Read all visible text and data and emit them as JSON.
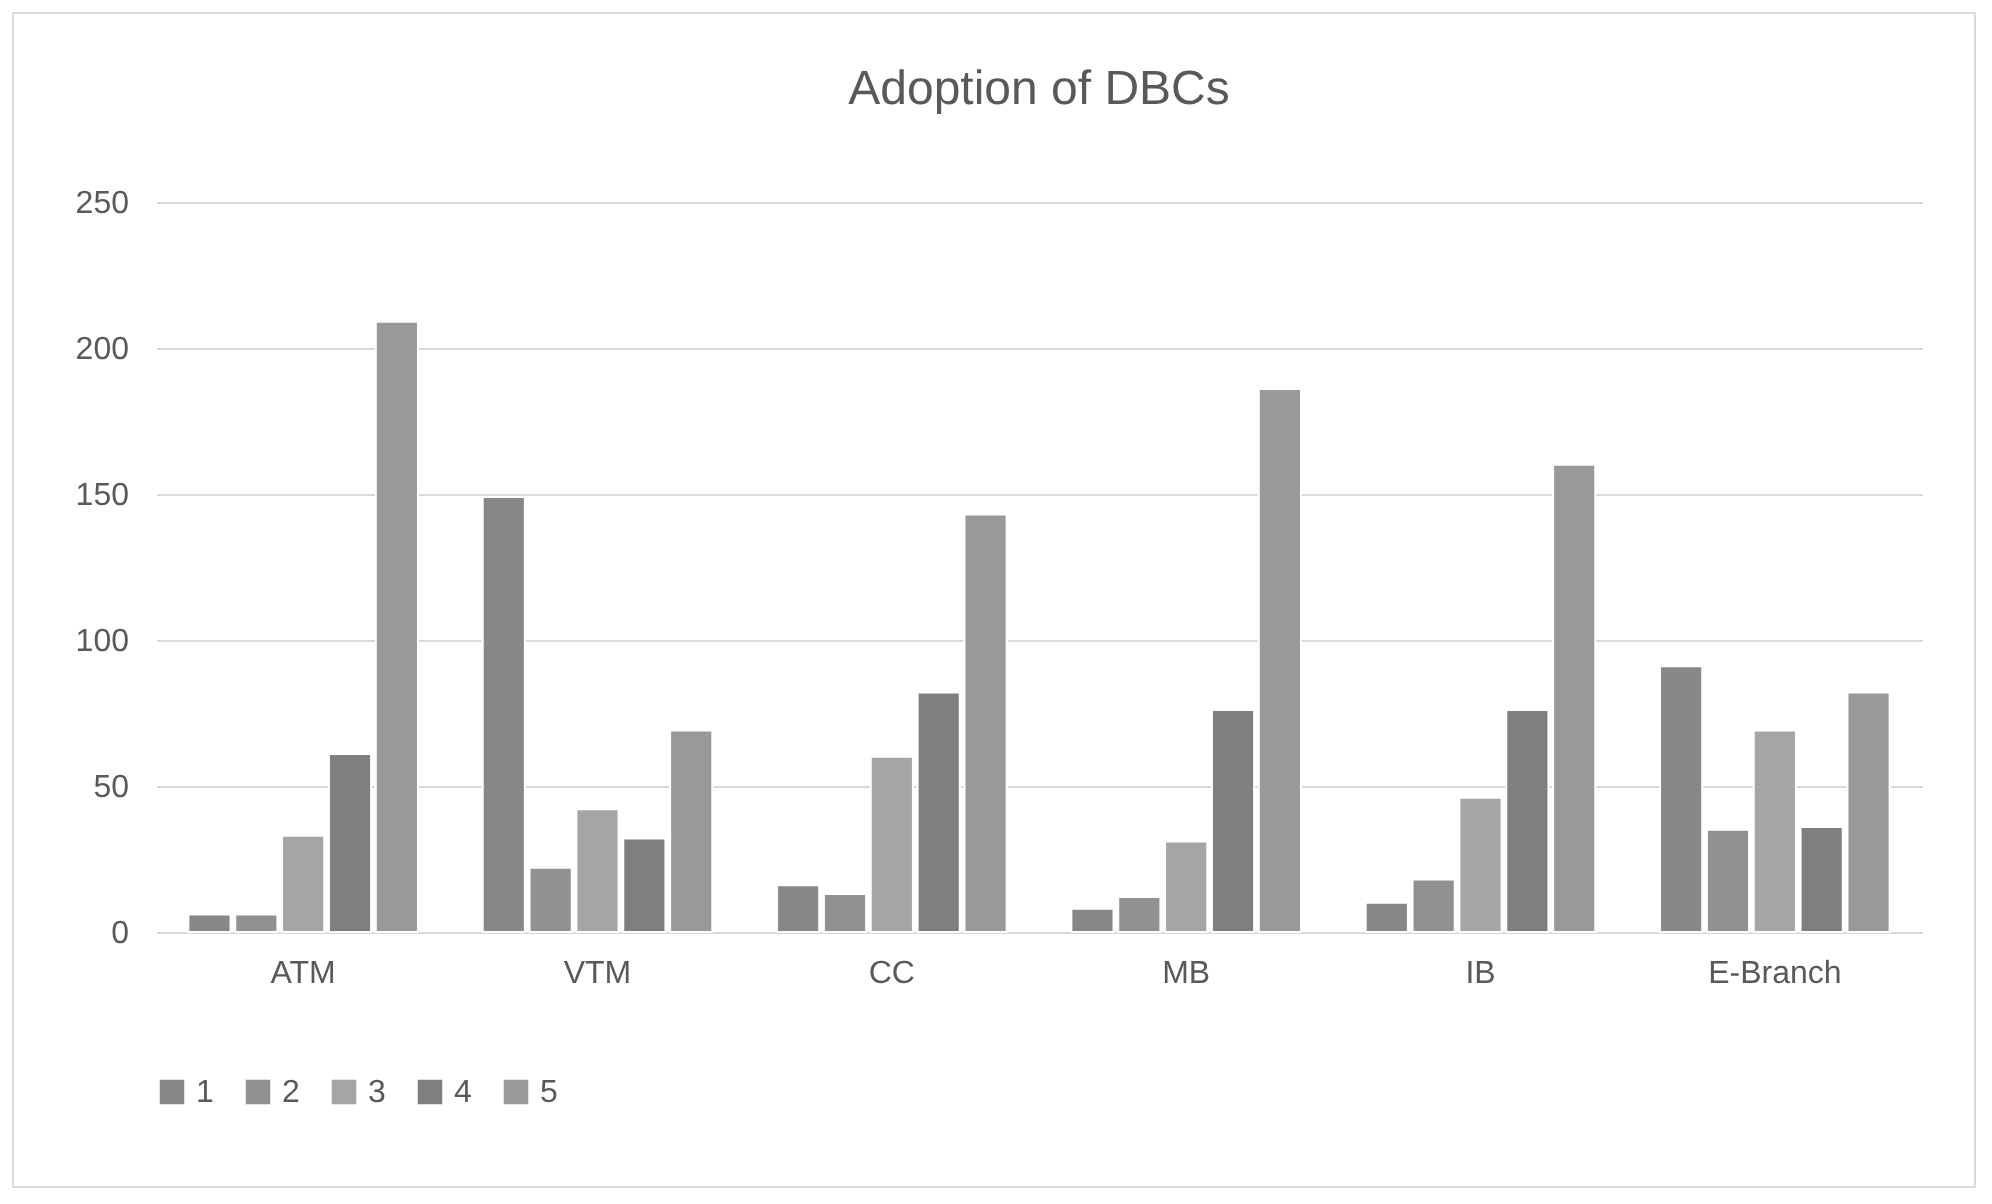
{
  "chart_data": {
    "type": "bar",
    "title": "Adoption of DBCs",
    "categories": [
      "ATM",
      "VTM",
      "CC",
      "MB",
      "IB",
      "E-Branch"
    ],
    "series": [
      {
        "name": "1",
        "color": "#878787",
        "values": [
          6,
          149,
          16,
          8,
          10,
          91
        ]
      },
      {
        "name": "2",
        "color": "#919191",
        "values": [
          6,
          22,
          13,
          12,
          18,
          35
        ]
      },
      {
        "name": "3",
        "color": "#a5a5a5",
        "values": [
          33,
          42,
          60,
          31,
          46,
          69
        ]
      },
      {
        "name": "4",
        "color": "#7f7f7f",
        "values": [
          61,
          32,
          82,
          76,
          76,
          36
        ]
      },
      {
        "name": "5",
        "color": "#999999",
        "values": [
          209,
          69,
          143,
          186,
          160,
          82
        ]
      }
    ],
    "ylim": [
      0,
      250
    ],
    "yticks": [
      0,
      50,
      100,
      150,
      200,
      250
    ],
    "grid": "y",
    "legend": "bottom"
  }
}
